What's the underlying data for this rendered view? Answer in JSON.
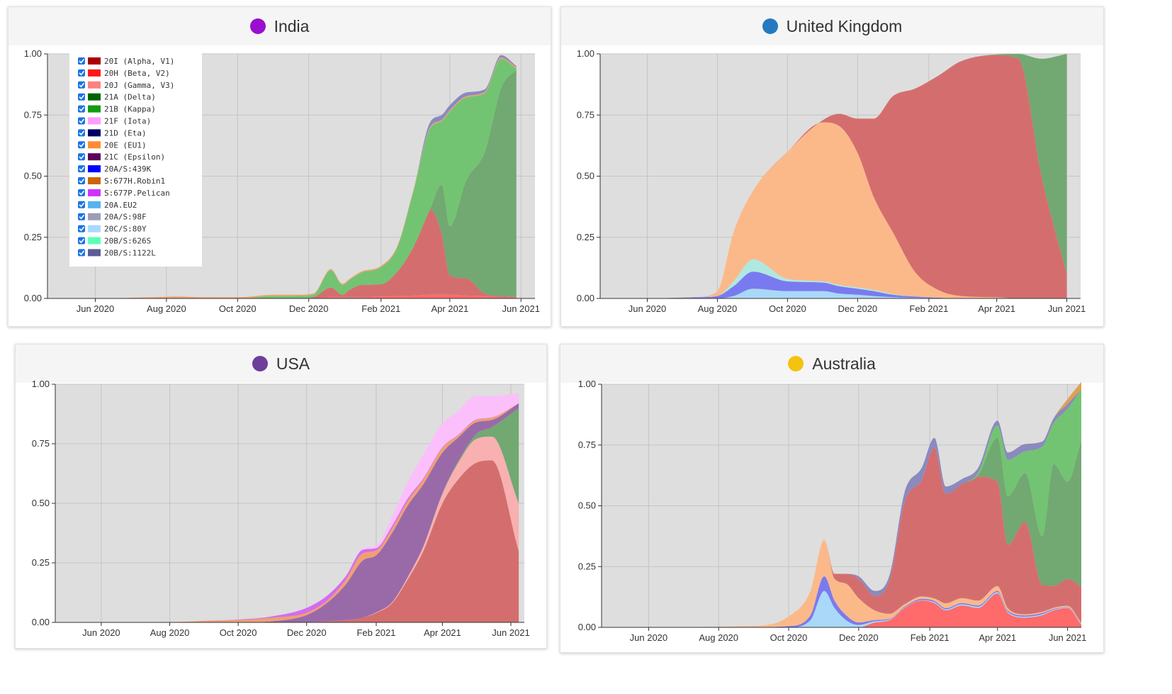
{
  "panels": [
    {
      "key": "india",
      "title": "India",
      "dot_color": "#9a0fcf"
    },
    {
      "key": "uk",
      "title": "United Kingdom",
      "dot_color": "#2579c2"
    },
    {
      "key": "usa",
      "title": "USA",
      "dot_color": "#6f3d9b"
    },
    {
      "key": "aus",
      "title": "Australia",
      "dot_color": "#f5c210"
    }
  ],
  "legend": {
    "items": [
      {
        "label": "20I (Alpha, V1)",
        "color": "#a80000",
        "checked": true
      },
      {
        "label": "20H (Beta, V2)",
        "color": "#ff1a1a",
        "checked": true
      },
      {
        "label": "20J (Gamma, V3)",
        "color": "#ff8080",
        "checked": true
      },
      {
        "label": "21A (Delta)",
        "color": "#006400",
        "checked": true
      },
      {
        "label": "21B (Kappa)",
        "color": "#139c13",
        "checked": true
      },
      {
        "label": "21F (Iota)",
        "color": "#ff9cff",
        "checked": true
      },
      {
        "label": "21D (Eta)",
        "color": "#000066",
        "checked": true
      },
      {
        "label": "20E (EU1)",
        "color": "#ff8c33",
        "checked": true
      },
      {
        "label": "21C (Epsilon)",
        "color": "#5c005c",
        "checked": true
      },
      {
        "label": "20A/S:439K",
        "color": "#0000ff",
        "checked": true
      },
      {
        "label": "S:677H.Robin1",
        "color": "#cc6600",
        "checked": true
      },
      {
        "label": "S:677P.Pelican",
        "color": "#cc33ff",
        "checked": true
      },
      {
        "label": "20A.EU2",
        "color": "#55b3f0",
        "checked": true
      },
      {
        "label": "20A/S:98F",
        "color": "#9d9db8",
        "checked": true
      },
      {
        "label": "20C/S:80Y",
        "color": "#aad8ff",
        "checked": true
      },
      {
        "label": "20B/S:626S",
        "color": "#5cffb8",
        "checked": true
      },
      {
        "label": "20B/S:1122L",
        "color": "#5c5c99",
        "checked": true
      }
    ]
  },
  "chart_data": [
    {
      "type": "area",
      "title": "India",
      "stacked": true,
      "x_ticks": [
        "Jun 2020",
        "Aug 2020",
        "Oct 2020",
        "Dec 2020",
        "Feb 2021",
        "Apr 2021",
        "Jun 2021"
      ],
      "y_ticks": [
        "0.00",
        "0.25",
        "0.50",
        "0.75",
        "1.00"
      ],
      "ylim": [
        0,
        1
      ],
      "xlim": [
        "2020-04-21",
        "2021-06-13"
      ],
      "grid": true,
      "legend_position": "top-left",
      "x": [
        "2020-04-21",
        "2020-06-01",
        "2020-07-20",
        "2020-08-10",
        "2020-09-01",
        "2020-10-01",
        "2020-11-01",
        "2020-11-20",
        "2020-12-05",
        "2020-12-20",
        "2020-12-30",
        "2021-01-05",
        "2021-01-15",
        "2021-02-01",
        "2021-02-15",
        "2021-03-01",
        "2021-03-15",
        "2021-03-25",
        "2021-04-01",
        "2021-04-15",
        "2021-05-01",
        "2021-05-15",
        "2021-05-28"
      ],
      "series": [
        {
          "name": "20H (Beta, V2)",
          "color": "#ff6a6a",
          "values": [
            0,
            0,
            0,
            0,
            0,
            0,
            0,
            0,
            0,
            0.005,
            0.005,
            0.005,
            0.005,
            0.008,
            0.01,
            0.012,
            0.015,
            0.015,
            0.015,
            0.012,
            0.01,
            0.005,
            0.003
          ]
        },
        {
          "name": "20I (Alpha, V1)",
          "color": "#d46e6e",
          "values": [
            0,
            0,
            0,
            0,
            0,
            0,
            0,
            0,
            0.005,
            0.04,
            0.01,
            0.03,
            0.05,
            0.05,
            0.1,
            0.2,
            0.35,
            0.25,
            0.08,
            0.07,
            0.01,
            0.005,
            0.003
          ]
        },
        {
          "name": "21A (Delta)",
          "color": "#72a872",
          "values": [
            0,
            0,
            0,
            0,
            0,
            0,
            0,
            0,
            0,
            0,
            0,
            0,
            0,
            0,
            0,
            0,
            0,
            0.2,
            0.2,
            0.4,
            0.58,
            0.85,
            0.93
          ]
        },
        {
          "name": "21B (Kappa)",
          "color": "#72c472",
          "values": [
            0,
            0,
            0,
            0,
            0,
            0,
            0.01,
            0.01,
            0.01,
            0.07,
            0.04,
            0.04,
            0.05,
            0.07,
            0.1,
            0.23,
            0.33,
            0.26,
            0.47,
            0.34,
            0.24,
            0.12,
            0.005
          ]
        },
        {
          "name": "20E (EU1)",
          "color": "#f0a070",
          "values": [
            0,
            0,
            0.005,
            0.008,
            0.005,
            0.005,
            0.005,
            0.005,
            0.005,
            0.005,
            0.005,
            0.005,
            0.005,
            0.005,
            0.005,
            0.005,
            0.005,
            0.005,
            0.005,
            0.005,
            0.005,
            0.005,
            0.005
          ]
        },
        {
          "name": "20B/S:1122L",
          "color": "#8a8abf",
          "values": [
            0,
            0,
            0,
            0,
            0,
            0,
            0,
            0,
            0,
            0,
            0,
            0,
            0,
            0,
            0,
            0,
            0.02,
            0.02,
            0.02,
            0.015,
            0.01,
            0.01,
            0.005
          ]
        }
      ]
    },
    {
      "type": "area",
      "title": "United Kingdom",
      "stacked": true,
      "x_ticks": [
        "Jun 2020",
        "Aug 2020",
        "Oct 2020",
        "Dec 2020",
        "Feb 2021",
        "Apr 2021",
        "Jun 2021"
      ],
      "y_ticks": [
        "0.00",
        "0.25",
        "0.50",
        "0.75",
        "1.00"
      ],
      "ylim": [
        0,
        1
      ],
      "xlim": [
        "2020-04-21",
        "2021-06-13"
      ],
      "grid": true,
      "x": [
        "2020-04-21",
        "2020-06-01",
        "2020-07-15",
        "2020-08-01",
        "2020-08-15",
        "2020-09-01",
        "2020-10-01",
        "2020-11-01",
        "2020-11-15",
        "2020-12-01",
        "2020-12-15",
        "2021-01-01",
        "2021-01-20",
        "2021-02-10",
        "2021-03-01",
        "2021-04-01",
        "2021-04-20",
        "2021-05-10",
        "2021-06-01"
      ],
      "series": [
        {
          "name": "20C/S:80Y",
          "color": "#aad8f8",
          "values": [
            0,
            0,
            0,
            0,
            0.01,
            0.04,
            0.03,
            0.03,
            0.02,
            0.015,
            0.01,
            0.005,
            0.003,
            0.001,
            0,
            0,
            0,
            0,
            0
          ]
        },
        {
          "name": "20A/S:439K",
          "color": "#7a7af0",
          "values": [
            0,
            0,
            0.005,
            0.01,
            0.04,
            0.07,
            0.04,
            0.035,
            0.03,
            0.025,
            0.02,
            0.01,
            0.005,
            0.002,
            0,
            0,
            0,
            0,
            0
          ]
        },
        {
          "name": "20B/S:626S",
          "color": "#b0e8e0",
          "values": [
            0,
            0,
            0,
            0,
            0.02,
            0.05,
            0.01,
            0.005,
            0.005,
            0.005,
            0.005,
            0.003,
            0,
            0,
            0,
            0,
            0,
            0,
            0
          ]
        },
        {
          "name": "20A.EU2",
          "color": "#fbb98a",
          "values": [
            0,
            0,
            0,
            0.02,
            0.2,
            0.28,
            0.52,
            0.65,
            0.65,
            0.55,
            0.38,
            0.25,
            0.1,
            0.03,
            0.01,
            0.005,
            0,
            0,
            0
          ]
        },
        {
          "name": "20I (Alpha, V1)",
          "color": "#d46e6e",
          "values": [
            0,
            0,
            0,
            0,
            0,
            0,
            0,
            0.01,
            0.05,
            0.14,
            0.32,
            0.56,
            0.75,
            0.88,
            0.96,
            0.99,
            0.98,
            0.5,
            0.1
          ]
        },
        {
          "name": "21A (Delta)",
          "color": "#72a872",
          "values": [
            0,
            0,
            0,
            0,
            0,
            0,
            0,
            0,
            0,
            0,
            0,
            0,
            0,
            0,
            0,
            0.003,
            0.02,
            0.48,
            0.9
          ]
        }
      ]
    },
    {
      "type": "area",
      "title": "USA",
      "stacked": true,
      "x_ticks": [
        "Jun 2020",
        "Aug 2020",
        "Oct 2020",
        "Dec 2020",
        "Feb 2021",
        "Apr 2021",
        "Jun 2021"
      ],
      "y_ticks": [
        "0.00",
        "0.25",
        "0.50",
        "0.75",
        "1.00"
      ],
      "ylim": [
        0,
        1
      ],
      "xlim": [
        "2020-04-21",
        "2021-06-13"
      ],
      "grid": true,
      "x": [
        "2020-04-21",
        "2020-07-01",
        "2020-08-15",
        "2020-09-01",
        "2020-10-01",
        "2020-11-01",
        "2020-12-01",
        "2020-12-20",
        "2021-01-05",
        "2021-01-20",
        "2021-02-01",
        "2021-02-15",
        "2021-03-01",
        "2021-03-15",
        "2021-04-01",
        "2021-04-15",
        "2021-05-01",
        "2021-05-15",
        "2021-06-08"
      ],
      "series": [
        {
          "name": "20I (Alpha, V1)",
          "color": "#d46e6e",
          "values": [
            0,
            0,
            0,
            0,
            0,
            0,
            0.001,
            0.005,
            0.01,
            0.02,
            0.04,
            0.08,
            0.18,
            0.3,
            0.5,
            0.6,
            0.67,
            0.68,
            0.3
          ]
        },
        {
          "name": "20J (Gamma, V3)",
          "color": "#f8b0b0",
          "values": [
            0,
            0,
            0,
            0,
            0,
            0,
            0,
            0,
            0,
            0,
            0.002,
            0.004,
            0.01,
            0.02,
            0.04,
            0.07,
            0.1,
            0.1,
            0.2
          ]
        },
        {
          "name": "21A (Delta)",
          "color": "#72a872",
          "values": [
            0,
            0,
            0,
            0,
            0,
            0,
            0,
            0,
            0,
            0,
            0,
            0,
            0,
            0,
            0.003,
            0.006,
            0.02,
            0.04,
            0.4
          ]
        },
        {
          "name": "21C (Epsilon)",
          "color": "#9a6aa8",
          "values": [
            0,
            0,
            0,
            0,
            0,
            0.005,
            0.03,
            0.08,
            0.15,
            0.24,
            0.24,
            0.29,
            0.3,
            0.26,
            0.17,
            0.1,
            0.05,
            0.03,
            0.02
          ]
        },
        {
          "name": "20E (EU1)",
          "color": "#f0a070",
          "values": [
            0,
            0,
            0.003,
            0.007,
            0.01,
            0.015,
            0.01,
            0.01,
            0.02,
            0.03,
            0.02,
            0.02,
            0.02,
            0.02,
            0.02,
            0.01,
            0.01,
            0.01,
            0
          ]
        },
        {
          "name": "S:677P.Pelican",
          "color": "#d36cf0",
          "values": [
            0,
            0,
            0,
            0,
            0.002,
            0.006,
            0.02,
            0.02,
            0.015,
            0.015,
            0.01,
            0.01,
            0.01,
            0.005,
            0.003,
            0.002,
            0.002,
            0.001,
            0
          ]
        },
        {
          "name": "21F (Iota)",
          "color": "#fbc0fb",
          "values": [
            0,
            0,
            0,
            0,
            0,
            0,
            0,
            0,
            0,
            0.005,
            0.01,
            0.04,
            0.07,
            0.1,
            0.1,
            0.1,
            0.1,
            0.09,
            0.04
          ]
        }
      ]
    },
    {
      "type": "area",
      "title": "Australia",
      "stacked": true,
      "x_ticks": [
        "Jun 2020",
        "Aug 2020",
        "Oct 2020",
        "Dec 2020",
        "Feb 2021",
        "Apr 2021",
        "Jun 2021"
      ],
      "y_ticks": [
        "0.00",
        "0.25",
        "0.50",
        "0.75",
        "1.00"
      ],
      "ylim": [
        0,
        1
      ],
      "xlim": [
        "2020-04-21",
        "2021-06-13"
      ],
      "grid": true,
      "x": [
        "2020-04-21",
        "2020-09-01",
        "2020-10-01",
        "2020-10-20",
        "2020-11-01",
        "2020-11-10",
        "2020-11-20",
        "2020-12-01",
        "2020-12-15",
        "2020-12-28",
        "2021-01-10",
        "2021-01-25",
        "2021-02-05",
        "2021-02-15",
        "2021-03-01",
        "2021-03-15",
        "2021-04-01",
        "2021-04-10",
        "2021-04-25",
        "2021-05-10",
        "2021-05-20",
        "2021-06-01",
        "2021-06-13"
      ],
      "series": [
        {
          "name": "20H (Beta, V2)",
          "color": "#ff6a6a",
          "values": [
            0,
            0,
            0,
            0,
            0,
            0,
            0,
            0,
            0.02,
            0.03,
            0.08,
            0.11,
            0.1,
            0.07,
            0.09,
            0.08,
            0.14,
            0.06,
            0.04,
            0.05,
            0.07,
            0.08,
            0.01
          ]
        },
        {
          "name": "20A.EU2",
          "color": "#aad8f8",
          "values": [
            0,
            0,
            0,
            0.03,
            0.15,
            0.08,
            0.03,
            0.01,
            0.005,
            0.003,
            0.002,
            0.002,
            0.004,
            0.004,
            0.005,
            0.005,
            0.005,
            0.004,
            0.004,
            0.004,
            0.003,
            0.002,
            0.002
          ]
        },
        {
          "name": "20A/S:439K",
          "color": "#7a7af0",
          "values": [
            0,
            0.001,
            0.005,
            0.02,
            0.06,
            0.03,
            0.02,
            0.01,
            0.005,
            0.003,
            0.003,
            0.005,
            0.005,
            0.005,
            0.005,
            0.005,
            0.005,
            0.005,
            0.005,
            0.005,
            0.003,
            0.002,
            0.002
          ]
        },
        {
          "name": "20E (EU1)",
          "color": "#fbb98a",
          "values": [
            0,
            0.005,
            0.04,
            0.1,
            0.15,
            0.09,
            0.13,
            0.1,
            0.04,
            0.02,
            0.01,
            0.01,
            0.01,
            0.02,
            0.02,
            0.02,
            0.02,
            0.01,
            0.005,
            0.005,
            0.005,
            0.005,
            0.005
          ]
        },
        {
          "name": "20I (Alpha, V1)",
          "color": "#d46e6e",
          "values": [
            0,
            0,
            0,
            0,
            0,
            0.02,
            0.04,
            0.08,
            0.06,
            0.14,
            0.42,
            0.48,
            0.62,
            0.45,
            0.47,
            0.51,
            0.43,
            0.26,
            0.38,
            0.11,
            0.09,
            0.11,
            0.15
          ]
        },
        {
          "name": "21A (Delta)",
          "color": "#72a872",
          "values": [
            0,
            0,
            0,
            0,
            0,
            0,
            0,
            0,
            0,
            0,
            0,
            0,
            0,
            0,
            0,
            0.005,
            0.18,
            0.2,
            0.2,
            0.2,
            0.5,
            0.4,
            0.6
          ]
        },
        {
          "name": "21B (Kappa)",
          "color": "#72c472",
          "values": [
            0,
            0,
            0,
            0,
            0,
            0,
            0,
            0,
            0,
            0,
            0,
            0,
            0,
            0,
            0,
            0.01,
            0.05,
            0.15,
            0.09,
            0.37,
            0.17,
            0.3,
            0.21
          ]
        },
        {
          "name": "20B/S:1122L",
          "color": "#8a8abf",
          "values": [
            0,
            0,
            0,
            0,
            0,
            0,
            0,
            0.01,
            0.02,
            0.02,
            0.04,
            0.05,
            0.04,
            0.03,
            0.02,
            0.02,
            0.02,
            0.03,
            0.03,
            0.02,
            0.02,
            0.02,
            0
          ]
        },
        {
          "name": "S:677H.Robin1",
          "color": "#e0a050",
          "values": [
            0,
            0,
            0,
            0,
            0,
            0,
            0,
            0,
            0,
            0,
            0,
            0,
            0,
            0,
            0,
            0,
            0,
            0,
            0,
            0,
            0,
            0.02,
            0.03
          ]
        }
      ]
    }
  ]
}
